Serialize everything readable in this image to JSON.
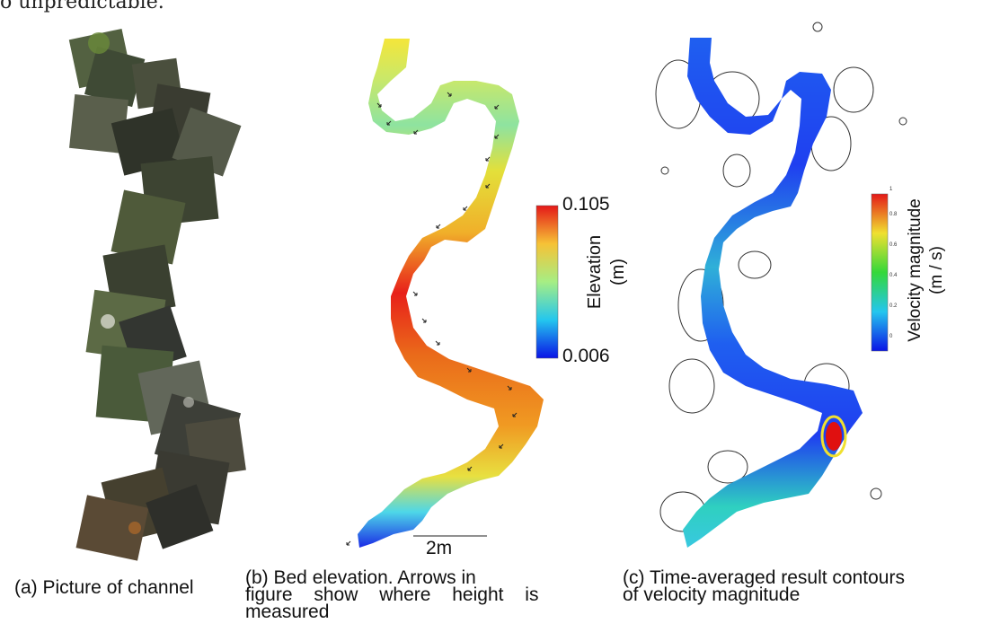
{
  "top_text": "o unpredictable.",
  "panel_b": {
    "colorbar": {
      "max": "0.105",
      "min": "0.006",
      "label": "Elevation",
      "unit": "(m)"
    },
    "scale_bar": "2m"
  },
  "panel_c": {
    "colorbar": {
      "label": "Velocity magnitude",
      "unit": "(m / s)",
      "ticks": [
        "0",
        "0.2",
        "0.4",
        "0.6",
        "0.8",
        "1"
      ]
    }
  },
  "captions": {
    "a": "(a) Picture of channel",
    "b_line1": "(b) Bed elevation. Arrows in",
    "b_line2": "figure show where height is",
    "b_line3": "measured",
    "c_line1": "(c) Time-averaged result contours",
    "c_line2": "of velocity magnitude"
  },
  "colors": {
    "elevation_low": "#1a1ae6",
    "elevation_mid": "#8ee3a0",
    "elevation_high": "#e8201a",
    "velocity_low": "#1f3ff0",
    "velocity_high": "#e01010"
  }
}
